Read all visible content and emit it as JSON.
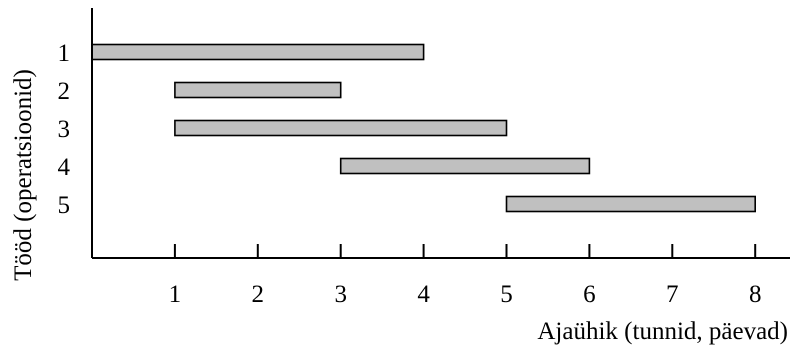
{
  "chart_data": {
    "type": "gantt",
    "xlabel": "Ajaühik (tunnid, päevad)",
    "ylabel": "Tööd (operatsioonid)",
    "x_ticks": [
      1,
      2,
      3,
      4,
      5,
      6,
      7,
      8
    ],
    "xlim": [
      0,
      8.2
    ],
    "grid": false,
    "tasks": [
      {
        "label": "1",
        "start": 0,
        "end": 4
      },
      {
        "label": "2",
        "start": 1,
        "end": 3
      },
      {
        "label": "3",
        "start": 1,
        "end": 5
      },
      {
        "label": "4",
        "start": 3,
        "end": 6
      },
      {
        "label": "5",
        "start": 5,
        "end": 8
      }
    ],
    "colors": {
      "bar_fill": "#c0c0c0",
      "bar_stroke": "#000000",
      "axis": "#000000"
    }
  }
}
